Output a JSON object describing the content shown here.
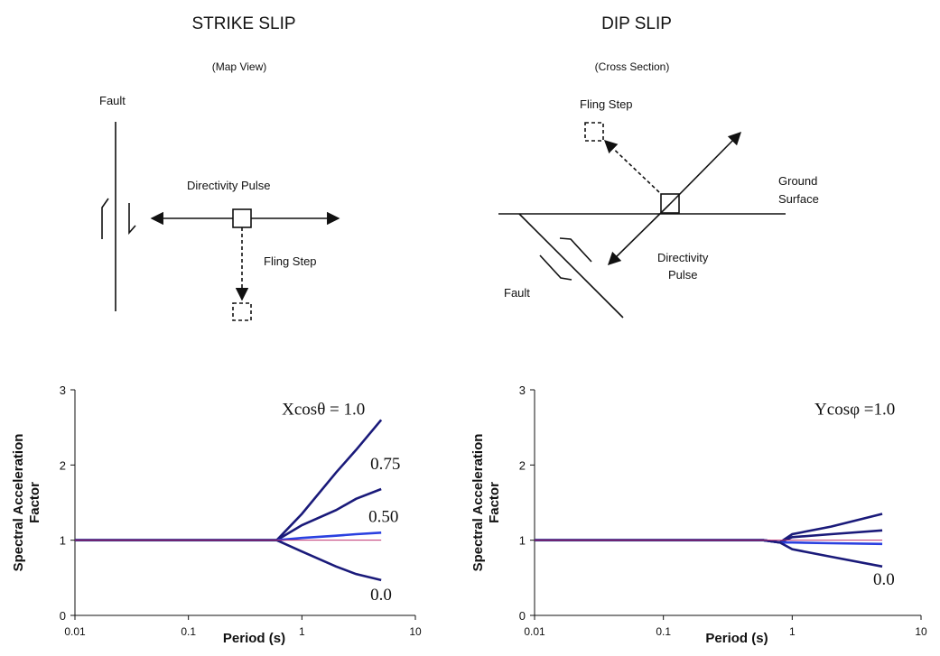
{
  "diagrams": [
    {
      "title": "STRIKE SLIP",
      "subtitle": "(Map View)",
      "labels": [
        "Fault",
        "Directivity Pulse",
        "Fling Step"
      ]
    },
    {
      "title": "DIP SLIP",
      "subtitle": "(Cross Section)",
      "labels": [
        "Fling Step",
        "Ground",
        "Surface",
        "Directivity",
        "Pulse",
        "Fault"
      ]
    }
  ],
  "chart_data": [
    {
      "type": "line",
      "log_x": true,
      "x_label": "Period (s)",
      "y_label": [
        "Spectral Acceleration",
        "Factor"
      ],
      "xlim": [
        0.01,
        10
      ],
      "xticks": [
        0.01,
        0.1,
        1,
        10
      ],
      "ylim": [
        0,
        3
      ],
      "yticks": [
        0,
        1,
        2,
        3
      ],
      "x": [
        0.01,
        0.6,
        1,
        2,
        3,
        5
      ],
      "series": [
        {
          "name": "Xcosθ = 1.0",
          "color": "#1a1a7a",
          "values": [
            1,
            1,
            1.35,
            1.9,
            2.2,
            2.6
          ]
        },
        {
          "name": "0.75",
          "color": "#1a1a7a",
          "values": [
            1,
            1,
            1.2,
            1.4,
            1.55,
            1.68
          ]
        },
        {
          "name": "0.50",
          "color": "#2a40e0",
          "values": [
            1,
            1,
            1.03,
            1.06,
            1.08,
            1.1
          ]
        },
        {
          "name": "0.0",
          "color": "#1a1a7a",
          "values": [
            1,
            1,
            0.85,
            0.65,
            0.55,
            0.47
          ]
        },
        {
          "color": "#c03070",
          "values": [
            1,
            1,
            1,
            1,
            1,
            1
          ]
        }
      ]
    },
    {
      "type": "line",
      "log_x": true,
      "x_label": "Period (s)",
      "y_label": [
        "Spectral Acceleration",
        "Factor"
      ],
      "xlim": [
        0.01,
        10
      ],
      "xticks": [
        0.01,
        0.1,
        1,
        10
      ],
      "ylim": [
        0,
        3
      ],
      "yticks": [
        0,
        1,
        2,
        3
      ],
      "x": [
        0.01,
        0.6,
        0.8,
        1,
        2,
        5
      ],
      "series": [
        {
          "name": "Ycosφ =1.0",
          "color": "#1a1a7a",
          "values": [
            1,
            1,
            0.97,
            1.08,
            1.18,
            1.35
          ]
        },
        {
          "color": "#1a1a7a",
          "values": [
            1,
            1,
            0.97,
            1.04,
            1.08,
            1.13
          ]
        },
        {
          "color": "#2a40e0",
          "values": [
            1,
            1,
            0.97,
            0.97,
            0.96,
            0.95
          ]
        },
        {
          "name": "0.0",
          "color": "#1a1a7a",
          "values": [
            1,
            1,
            0.97,
            0.88,
            0.78,
            0.65
          ]
        },
        {
          "color": "#c03070",
          "values": [
            1,
            1,
            1,
            1,
            1,
            1
          ]
        }
      ]
    }
  ]
}
